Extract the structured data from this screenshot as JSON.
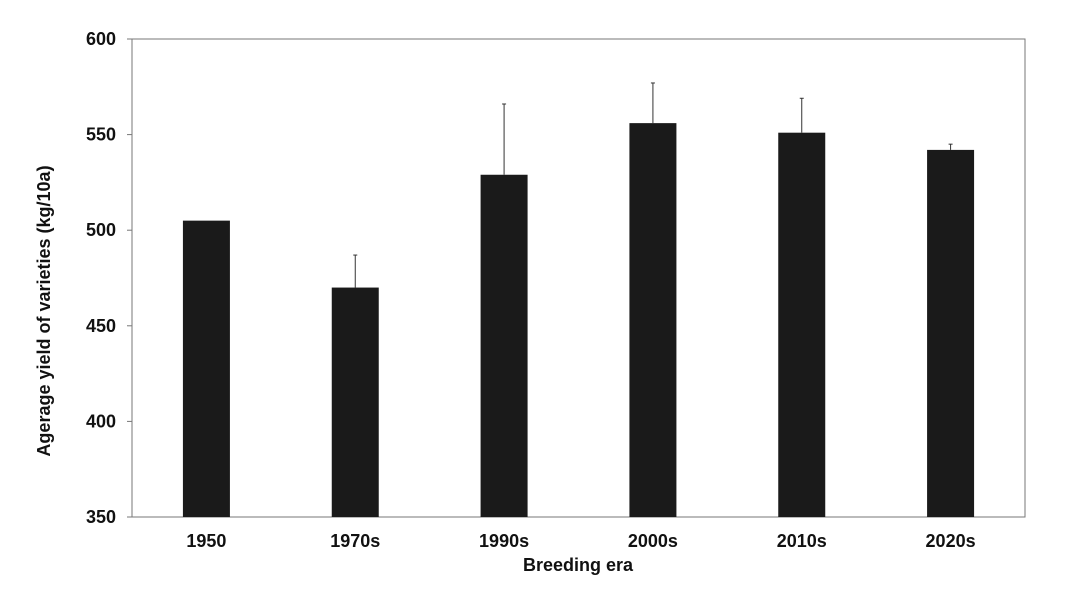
{
  "chart_data": {
    "type": "bar",
    "title": "",
    "xlabel": "Breeding era",
    "ylabel": "Agerage yield of varieties (kg/10a)",
    "categories": [
      "1950",
      "1970s",
      "1990s",
      "2000s",
      "2010s",
      "2020s"
    ],
    "values": [
      505,
      470,
      529,
      556,
      551,
      542
    ],
    "error_upper": [
      0,
      17,
      37,
      21,
      18,
      3
    ],
    "ylim": [
      350,
      600
    ],
    "yticks": [
      350,
      400,
      450,
      500,
      550,
      600
    ],
    "grid": false,
    "legend": "none",
    "bar_color": "#1a1a1a",
    "error_color": "#333333"
  }
}
